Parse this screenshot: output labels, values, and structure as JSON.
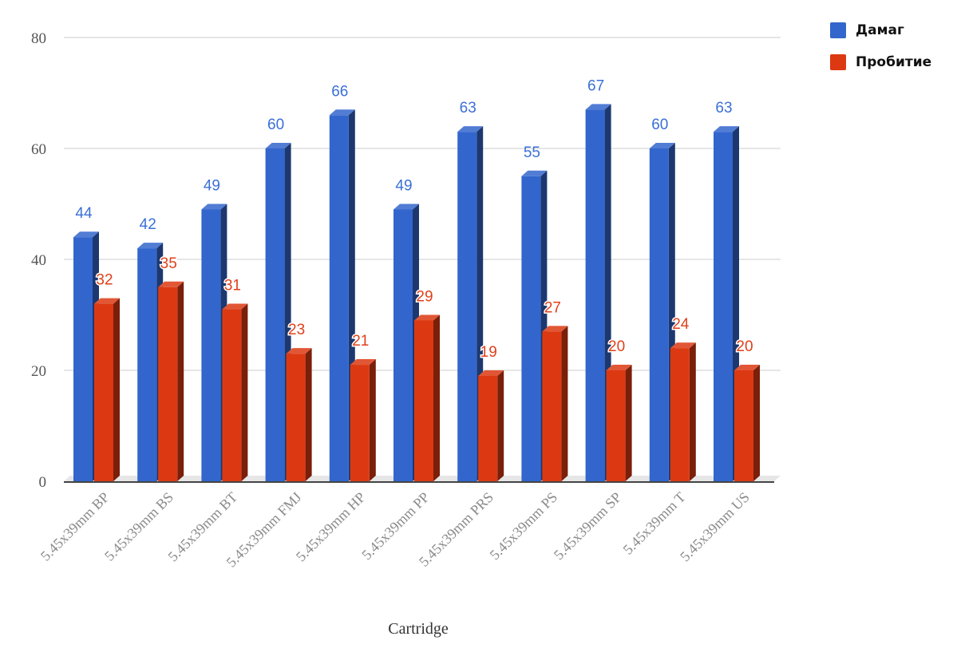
{
  "chart_data": {
    "type": "bar",
    "title": "",
    "xlabel": "Cartridge",
    "ylabel": "",
    "ylim": [
      0,
      80
    ],
    "yticks": [
      0,
      20,
      40,
      60,
      80
    ],
    "grid": true,
    "legend_position": "top-right",
    "three_d": true,
    "categories": [
      "5.45x39mm BP",
      "5.45x39mm BS",
      "5.45x39mm BT",
      "5.45x39mm FMJ",
      "5.45x39mm HP",
      "5.45x39mm PP",
      "5.45x39mm PRS",
      "5.45x39mm PS",
      "5.45x39mm SP",
      "5.45x39mm T",
      "5.45x39mm US"
    ],
    "series": [
      {
        "name": "Дамаг",
        "color": "#3366cc",
        "label_color": "#3a6fd8",
        "values": [
          44,
          42,
          49,
          60,
          66,
          49,
          63,
          55,
          67,
          60,
          63
        ]
      },
      {
        "name": "Пробитие",
        "color": "#dc3912",
        "label_color": "#e0401a",
        "values": [
          32,
          35,
          31,
          23,
          21,
          29,
          19,
          27,
          20,
          24,
          20
        ]
      }
    ]
  }
}
